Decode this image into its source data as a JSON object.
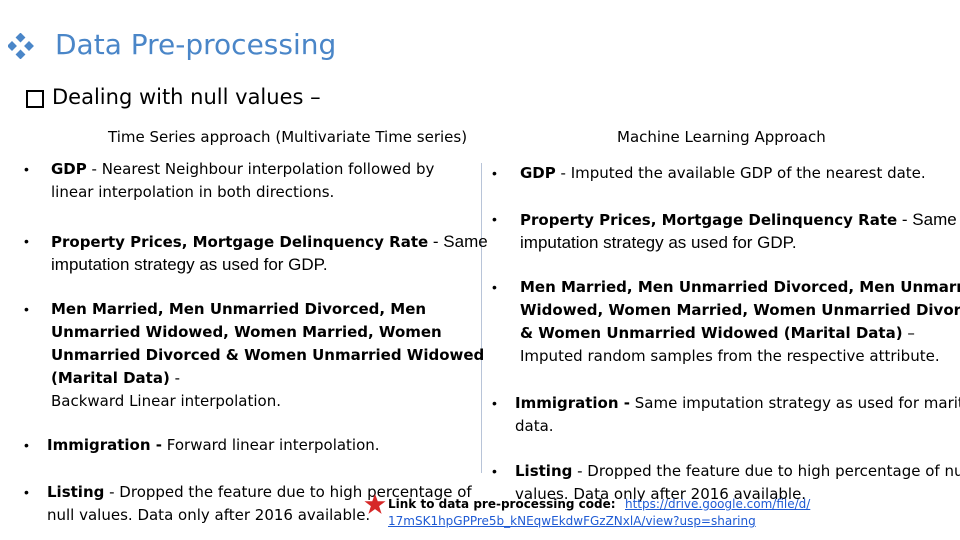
{
  "title": "Data Pre-processing",
  "subtitle": "Dealing with null values –",
  "left": {
    "heading": "Time Series approach (Multivariate Time series)",
    "items": [
      {
        "lines": [
          [
            {
              "b": "GDP"
            },
            {
              "t": " - Nearest Neighbour interpolation followed by"
            }
          ],
          [
            {
              "t": "linear interpolation in both directions."
            }
          ]
        ]
      },
      {
        "lines": [
          [
            {
              "b": "Property Prices, Mortgage Delinquency Rate"
            },
            {
              "t": "  - Same",
              "big": true
            }
          ],
          [
            {
              "t": "imputation strategy as used for GDP.",
              "big": true
            }
          ]
        ]
      },
      {
        "lines": [
          [
            {
              "b": "Men Married, Men Unmarried Divorced, Men"
            }
          ],
          [
            {
              "b": "Unmarried Widowed, Women Married, Women"
            }
          ],
          [
            {
              "b": "Unmarried Divorced & Women Unmarried Widowed"
            }
          ],
          [
            {
              "b": "(Marital Data)"
            },
            {
              "t": " -"
            }
          ],
          [
            {
              "t": " Backward Linear interpolation."
            }
          ]
        ]
      },
      {
        "lines": [
          [
            {
              "b": "Immigration -"
            },
            {
              "t": " Forward linear interpolation."
            }
          ]
        ]
      },
      {
        "lines": [
          [
            {
              "b": "Listing"
            },
            {
              "t": " - Dropped the feature due to high percentage of"
            }
          ],
          [
            {
              "t": "null values. Data only after 2016 available."
            }
          ]
        ]
      }
    ]
  },
  "right": {
    "heading": "Machine Learning Approach",
    "items": [
      {
        "lines": [
          [
            {
              "b": "GDP"
            },
            {
              "t": " - Imputed the available GDP of the nearest date."
            }
          ]
        ]
      },
      {
        "lines": [
          [
            {
              "b": "Property Prices, Mortgage Delinquency Rate"
            },
            {
              "t": "  - Same",
              "big": true
            }
          ],
          [
            {
              "t": "imputation strategy as used for GDP.",
              "big": true
            }
          ]
        ]
      },
      {
        "lines": [
          [
            {
              "b": "Men Married, Men Unmarried Divorced, Men Unmarried"
            }
          ],
          [
            {
              "b": "Widowed, Women Married, Women Unmarried Divorced"
            }
          ],
          [
            {
              "b": "& Women Unmarried Widowed (Marital Data)"
            },
            {
              "t": " –"
            }
          ],
          [
            {
              "t": " Imputed random samples from the respective attribute."
            }
          ]
        ]
      },
      {
        "lines": [
          [
            {
              "b": "Immigration -"
            },
            {
              "t": " Same imputation strategy as used for marital"
            }
          ],
          [
            {
              "t": "data."
            }
          ]
        ]
      },
      {
        "lines": [
          [
            {
              "b": "Listing"
            },
            {
              "t": " - Dropped the feature due to high percentage of null"
            }
          ],
          [
            {
              "t": "values. Data only after 2016 available."
            }
          ]
        ]
      }
    ]
  },
  "footer": {
    "link_label": "Link to data pre-processing code:",
    "link_line1": "https://drive.google.com/file/d/",
    "link_line2": "17mSK1hpGPPre5b_kNEqwEkdwFGzZNxlA/view?usp=sharing"
  },
  "colors": {
    "title": "#4a86c8",
    "star": "#d62828",
    "link": "#1f5bd4"
  },
  "icons": {
    "title_bullet": "diamond-bullet-icon",
    "subtitle_bullet": "checkbox-bullet-icon",
    "footer": "star-icon"
  }
}
